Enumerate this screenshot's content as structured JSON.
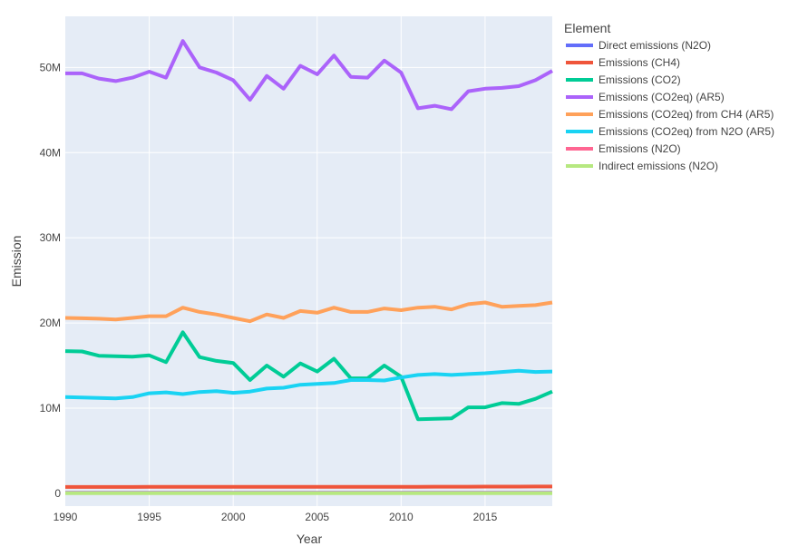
{
  "chart_data": {
    "type": "line",
    "xlabel": "Year",
    "ylabel": "Emission",
    "legend_title": "Element",
    "legend_position": "top-right",
    "grid": true,
    "xlim": [
      1990,
      2019
    ],
    "ylim": [
      -1500000,
      56000000
    ],
    "x_ticks": [
      1990,
      1995,
      2000,
      2005,
      2010,
      2015
    ],
    "x_tick_labels": [
      "1990",
      "1995",
      "2000",
      "2005",
      "2010",
      "2015"
    ],
    "y_ticks": [
      0,
      10000000,
      20000000,
      30000000,
      40000000,
      50000000
    ],
    "y_tick_labels": [
      "0",
      "10M",
      "20M",
      "30M",
      "40M",
      "50M"
    ],
    "x": [
      1990,
      1991,
      1992,
      1993,
      1994,
      1995,
      1996,
      1997,
      1998,
      1999,
      2000,
      2001,
      2002,
      2003,
      2004,
      2005,
      2006,
      2007,
      2008,
      2009,
      2010,
      2011,
      2012,
      2013,
      2014,
      2015,
      2016,
      2017,
      2018,
      2019
    ],
    "series": [
      {
        "name": "Direct emissions (N2O)",
        "color": "#636efa",
        "values": [
          80000,
          80000,
          80000,
          80000,
          80000,
          80000,
          80000,
          80000,
          80000,
          80000,
          80000,
          80000,
          80000,
          80000,
          80000,
          80000,
          80000,
          80000,
          80000,
          80000,
          80000,
          80000,
          80000,
          80000,
          80000,
          80000,
          80000,
          80000,
          80000,
          80000
        ]
      },
      {
        "name": "Emissions (CH4)",
        "color": "#EF553B",
        "values": [
          750000,
          750000,
          750000,
          750000,
          750000,
          760000,
          760000,
          760000,
          760000,
          760000,
          760000,
          760000,
          760000,
          760000,
          760000,
          770000,
          770000,
          770000,
          770000,
          770000,
          770000,
          770000,
          780000,
          780000,
          780000,
          790000,
          790000,
          790000,
          800000,
          800000
        ]
      },
      {
        "name": "Emissions (CO2)",
        "color": "#00cc96",
        "values": [
          16700000,
          16650000,
          16150000,
          16100000,
          16050000,
          16200000,
          15400000,
          18900000,
          16000000,
          15550000,
          15300000,
          13300000,
          15000000,
          13700000,
          15250000,
          14300000,
          15800000,
          13500000,
          13500000,
          15000000,
          13700000,
          8700000,
          8750000,
          8800000,
          10100000,
          10100000,
          10600000,
          10500000,
          11100000,
          11950000
        ]
      },
      {
        "name": "Emissions (CO2eq) (AR5)",
        "color": "#ab63fa",
        "values": [
          49300000,
          49300000,
          48700000,
          48400000,
          48800000,
          49500000,
          48800000,
          53100000,
          50000000,
          49400000,
          48500000,
          46200000,
          49000000,
          47500000,
          50200000,
          49200000,
          51400000,
          48900000,
          48800000,
          50800000,
          49400000,
          45200000,
          45500000,
          45100000,
          47200000,
          47500000,
          47600000,
          47800000,
          48500000,
          49600000
        ]
      },
      {
        "name": "Emissions (CO2eq) from CH4 (AR5)",
        "color": "#FFA15A",
        "values": [
          20600000,
          20550000,
          20500000,
          20400000,
          20600000,
          20800000,
          20800000,
          21800000,
          21300000,
          21000000,
          20600000,
          20200000,
          21000000,
          20600000,
          21400000,
          21200000,
          21800000,
          21300000,
          21300000,
          21700000,
          21500000,
          21800000,
          21900000,
          21600000,
          22200000,
          22400000,
          21900000,
          22000000,
          22100000,
          22400000
        ]
      },
      {
        "name": "Emissions (CO2eq) from N2O (AR5)",
        "color": "#19d3f3",
        "values": [
          11300000,
          11250000,
          11200000,
          11150000,
          11300000,
          11750000,
          11850000,
          11650000,
          11900000,
          12000000,
          11800000,
          11950000,
          12300000,
          12400000,
          12750000,
          12850000,
          12950000,
          13300000,
          13300000,
          13250000,
          13600000,
          13900000,
          14000000,
          13900000,
          14000000,
          14100000,
          14250000,
          14400000,
          14250000,
          14300000
        ]
      },
      {
        "name": "Emissions (N2O)",
        "color": "#FF6692",
        "values": [
          40000,
          40000,
          40000,
          40000,
          40000,
          40000,
          40000,
          40000,
          40000,
          40000,
          40000,
          40000,
          40000,
          40000,
          40000,
          40000,
          40000,
          40000,
          40000,
          40000,
          40000,
          40000,
          40000,
          40000,
          40000,
          40000,
          40000,
          40000,
          40000,
          40000
        ]
      },
      {
        "name": "Indirect emissions (N2O)",
        "color": "#B6E880",
        "values": [
          10000,
          10000,
          10000,
          10000,
          10000,
          10000,
          10000,
          10000,
          10000,
          10000,
          10000,
          10000,
          10000,
          10000,
          10000,
          10000,
          10000,
          10000,
          10000,
          10000,
          10000,
          10000,
          10000,
          10000,
          10000,
          10000,
          10000,
          10000,
          10000,
          10000
        ]
      }
    ]
  }
}
